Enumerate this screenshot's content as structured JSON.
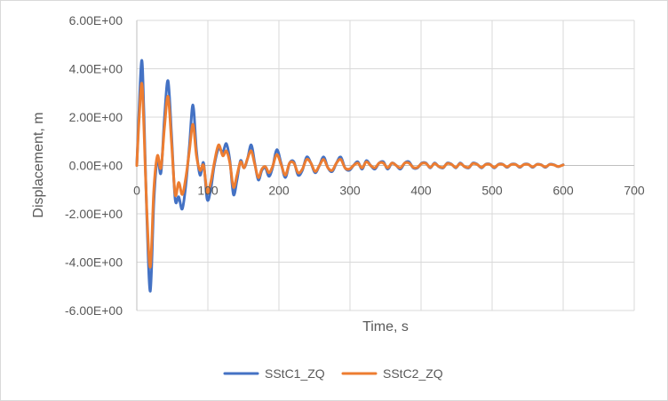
{
  "chart_data": {
    "type": "line",
    "title": "",
    "xlabel": "Time, s",
    "ylabel": "Displacement, m",
    "xlim": [
      0,
      700
    ],
    "ylim": [
      -6,
      6
    ],
    "x_ticks": [
      0,
      100,
      200,
      300,
      400,
      500,
      600,
      700
    ],
    "y_ticks": [
      -6,
      -4,
      -2,
      0,
      2,
      4,
      6
    ],
    "x_tick_labels": [
      "0",
      "100",
      "200",
      "300",
      "400",
      "500",
      "600",
      "700"
    ],
    "y_tick_labels": [
      "-6.00E+00",
      "-4.00E+00",
      "-2.00E+00",
      "0.00E+00",
      "2.00E+00",
      "4.00E+00",
      "6.00E+00"
    ],
    "grid": true,
    "legend_position": "bottom",
    "series": [
      {
        "name": "SStC1_ZQ",
        "color": "#4472C4",
        "x": [
          0,
          3,
          7,
          10,
          14,
          19,
          24,
          29,
          34,
          39,
          44,
          49,
          54,
          59,
          64,
          69,
          74,
          79,
          84,
          89,
          94,
          99,
          104,
          109,
          115,
          121,
          126,
          131,
          136,
          141,
          146,
          151,
          156,
          161,
          166,
          171,
          176,
          181,
          186,
          191,
          197,
          203,
          209,
          215,
          221,
          227,
          233,
          239,
          245,
          251,
          257,
          263,
          269,
          275,
          281,
          287,
          293,
          299,
          305,
          311,
          317,
          323,
          329,
          335,
          341,
          347,
          353,
          359,
          365,
          371,
          377,
          383,
          389,
          395,
          401,
          407,
          413,
          419,
          425,
          431,
          437,
          443,
          449,
          455,
          461,
          467,
          473,
          479,
          485,
          491,
          497,
          503,
          509,
          515,
          521,
          527,
          533,
          539,
          545,
          551,
          557,
          563,
          569,
          575,
          581,
          587,
          593,
          600
        ],
        "y": [
          0,
          2.2,
          4.35,
          2.2,
          -2.0,
          -5.2,
          -1.5,
          0.3,
          -0.3,
          2.0,
          3.5,
          1.2,
          -1.4,
          -1.3,
          -1.8,
          -0.8,
          0.8,
          2.5,
          0.6,
          -0.4,
          0.1,
          -1.4,
          -1.0,
          0.0,
          0.7,
          0.55,
          0.9,
          0.2,
          -1.2,
          -0.6,
          0.2,
          -0.1,
          0.3,
          0.85,
          0.1,
          -0.6,
          -0.2,
          -0.1,
          -0.45,
          -0.1,
          0.65,
          0.1,
          -0.5,
          0.1,
          0.15,
          -0.4,
          -0.2,
          0.35,
          0.1,
          -0.3,
          0.0,
          0.35,
          -0.1,
          -0.25,
          0.1,
          0.35,
          -0.1,
          -0.2,
          0.0,
          0.15,
          -0.15,
          0.2,
          0.0,
          -0.15,
          0.1,
          0.15,
          -0.15,
          0.1,
          0.0,
          -0.15,
          0.1,
          0.15,
          -0.1,
          -0.1,
          0.1,
          0.1,
          -0.1,
          0.1,
          -0.05,
          -0.1,
          0.1,
          0.05,
          -0.1,
          0.1,
          -0.05,
          -0.1,
          0.1,
          0.05,
          -0.1,
          0.05,
          0.05,
          -0.1,
          0.05,
          0.05,
          -0.08,
          0.05,
          0.05,
          -0.08,
          0.05,
          0.05,
          -0.08,
          0.05,
          0.03,
          -0.08,
          0.05,
          0.03,
          -0.05,
          0.03
        ]
      },
      {
        "name": "SStC2_ZQ",
        "color": "#ED7D31",
        "x": [
          0,
          3,
          7,
          10,
          14,
          19,
          24,
          29,
          34,
          39,
          44,
          49,
          54,
          59,
          64,
          69,
          74,
          79,
          84,
          89,
          94,
          99,
          104,
          109,
          115,
          121,
          126,
          131,
          136,
          141,
          146,
          151,
          156,
          161,
          166,
          171,
          176,
          181,
          186,
          191,
          197,
          203,
          209,
          215,
          221,
          227,
          233,
          239,
          245,
          251,
          257,
          263,
          269,
          275,
          281,
          287,
          293,
          299,
          305,
          311,
          317,
          323,
          329,
          335,
          341,
          347,
          353,
          359,
          365,
          371,
          377,
          383,
          389,
          395,
          401,
          407,
          413,
          419,
          425,
          431,
          437,
          443,
          449,
          455,
          461,
          467,
          473,
          479,
          485,
          491,
          497,
          503,
          509,
          515,
          521,
          527,
          533,
          539,
          545,
          551,
          557,
          563,
          569,
          575,
          581,
          587,
          593,
          600
        ],
        "y": [
          0,
          1.8,
          3.4,
          1.6,
          -1.8,
          -4.2,
          -1.0,
          0.4,
          -0.1,
          1.6,
          2.85,
          0.9,
          -1.2,
          -0.7,
          -1.2,
          -0.5,
          0.6,
          1.7,
          0.4,
          -0.2,
          0.0,
          -1.1,
          -0.7,
          0.1,
          0.85,
          0.4,
          0.6,
          0.1,
          -0.9,
          -0.4,
          0.15,
          -0.1,
          0.3,
          0.6,
          0.05,
          -0.5,
          -0.15,
          -0.05,
          -0.3,
          -0.05,
          0.45,
          0.05,
          -0.4,
          0.1,
          0.1,
          -0.3,
          -0.15,
          0.25,
          0.1,
          -0.25,
          0.0,
          0.25,
          -0.1,
          -0.2,
          0.1,
          0.25,
          -0.1,
          -0.15,
          0.0,
          0.1,
          -0.1,
          0.15,
          0.0,
          -0.1,
          0.1,
          0.1,
          -0.1,
          0.1,
          0.0,
          -0.1,
          0.1,
          0.1,
          -0.08,
          -0.08,
          0.08,
          0.08,
          -0.08,
          0.08,
          -0.04,
          -0.08,
          0.08,
          0.04,
          -0.08,
          0.08,
          -0.04,
          -0.08,
          0.08,
          0.04,
          -0.08,
          0.04,
          0.04,
          -0.08,
          0.04,
          0.04,
          -0.06,
          0.04,
          0.04,
          -0.06,
          0.04,
          0.04,
          -0.06,
          0.04,
          0.02,
          -0.06,
          0.04,
          0.02,
          -0.04,
          0.02
        ]
      }
    ]
  }
}
